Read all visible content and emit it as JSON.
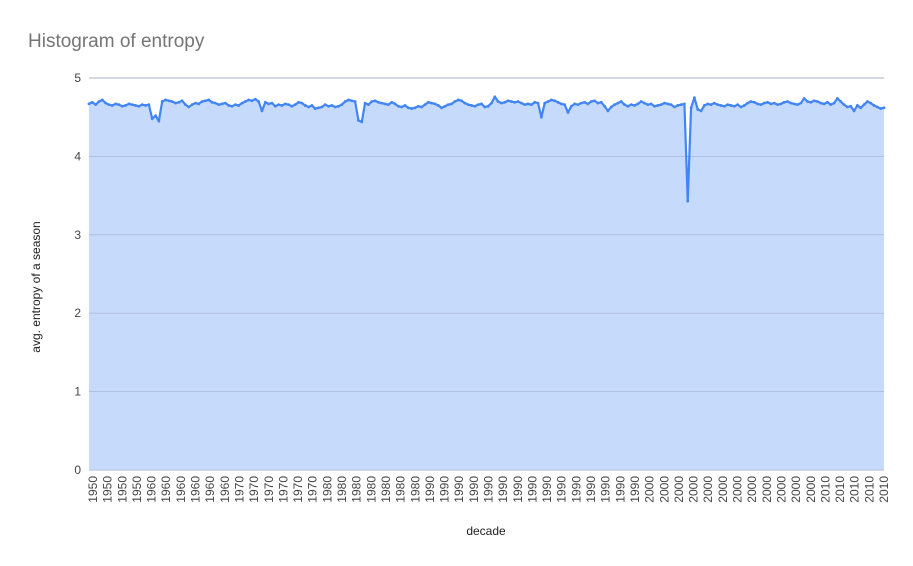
{
  "chart_data": {
    "type": "area",
    "title": "Histogram of entropy",
    "xlabel": "decade",
    "ylabel": "avg. entropy of a season",
    "ylim": [
      0,
      5
    ],
    "y_ticks": [
      "0",
      "1",
      "2",
      "3",
      "4",
      "5"
    ],
    "x_tick_labels": [
      "1950",
      "1950",
      "1950",
      "1950",
      "1960",
      "1960",
      "1960",
      "1960",
      "1960",
      "1960",
      "1970",
      "1970",
      "1970",
      "1970",
      "1970",
      "1970",
      "1980",
      "1980",
      "1980",
      "1980",
      "1980",
      "1980",
      "1980",
      "1990",
      "1990",
      "1990",
      "1990",
      "1990",
      "1990",
      "1990",
      "1990",
      "1990",
      "1990",
      "1990",
      "1990",
      "1990",
      "1990",
      "1990",
      "2000",
      "2000",
      "2000",
      "2000",
      "2000",
      "2000",
      "2000",
      "2000",
      "2000",
      "2000",
      "2000",
      "2000",
      "2010",
      "2010",
      "2010",
      "2010",
      "2010"
    ],
    "grid": true,
    "legend": "none",
    "colors": {
      "line": "#4285f4",
      "fill": "#c6dafc",
      "grid": "#9aa3b5"
    },
    "series": [
      {
        "values": [
          4.67,
          4.69,
          4.66,
          4.7,
          4.72,
          4.68,
          4.66,
          4.65,
          4.67,
          4.66,
          4.64,
          4.65,
          4.67,
          4.66,
          4.65,
          4.64,
          4.66,
          4.65,
          4.66,
          4.48,
          4.52,
          4.45,
          4.7,
          4.72,
          4.71,
          4.7,
          4.68,
          4.69,
          4.71,
          4.66,
          4.63,
          4.66,
          4.68,
          4.67,
          4.7,
          4.71,
          4.72,
          4.69,
          4.68,
          4.66,
          4.67,
          4.68,
          4.65,
          4.64,
          4.66,
          4.65,
          4.68,
          4.7,
          4.72,
          4.71,
          4.73,
          4.7,
          4.58,
          4.69,
          4.67,
          4.68,
          4.64,
          4.66,
          4.65,
          4.67,
          4.66,
          4.64,
          4.66,
          4.69,
          4.68,
          4.65,
          4.63,
          4.65,
          4.61,
          4.62,
          4.63,
          4.66,
          4.64,
          4.65,
          4.63,
          4.64,
          4.66,
          4.7,
          4.72,
          4.71,
          4.7,
          4.46,
          4.44,
          4.68,
          4.66,
          4.7,
          4.71,
          4.69,
          4.68,
          4.67,
          4.66,
          4.69,
          4.67,
          4.64,
          4.63,
          4.65,
          4.62,
          4.61,
          4.62,
          4.64,
          4.63,
          4.66,
          4.69,
          4.68,
          4.67,
          4.65,
          4.62,
          4.64,
          4.66,
          4.67,
          4.7,
          4.72,
          4.71,
          4.68,
          4.66,
          4.65,
          4.64,
          4.66,
          4.67,
          4.63,
          4.64,
          4.68,
          4.76,
          4.7,
          4.68,
          4.69,
          4.71,
          4.7,
          4.69,
          4.7,
          4.68,
          4.66,
          4.67,
          4.66,
          4.69,
          4.68,
          4.5,
          4.68,
          4.7,
          4.72,
          4.71,
          4.69,
          4.67,
          4.66,
          4.56,
          4.64,
          4.67,
          4.66,
          4.68,
          4.69,
          4.67,
          4.7,
          4.71,
          4.68,
          4.69,
          4.64,
          4.58,
          4.63,
          4.66,
          4.68,
          4.7,
          4.66,
          4.64,
          4.66,
          4.65,
          4.67,
          4.7,
          4.68,
          4.66,
          4.67,
          4.64,
          4.65,
          4.66,
          4.68,
          4.67,
          4.66,
          4.63,
          4.65,
          4.66,
          4.67,
          3.43,
          4.62,
          4.75,
          4.6,
          4.58,
          4.65,
          4.67,
          4.66,
          4.68,
          4.66,
          4.65,
          4.64,
          4.66,
          4.65,
          4.64,
          4.66,
          4.63,
          4.65,
          4.68,
          4.7,
          4.69,
          4.67,
          4.66,
          4.68,
          4.69,
          4.67,
          4.68,
          4.66,
          4.67,
          4.69,
          4.7,
          4.68,
          4.67,
          4.66,
          4.68,
          4.74,
          4.7,
          4.69,
          4.71,
          4.7,
          4.68,
          4.67,
          4.69,
          4.66,
          4.68,
          4.74,
          4.7,
          4.66,
          4.63,
          4.64,
          4.58,
          4.65,
          4.62,
          4.66,
          4.7,
          4.68,
          4.65,
          4.63,
          4.61,
          4.62
        ]
      }
    ]
  }
}
